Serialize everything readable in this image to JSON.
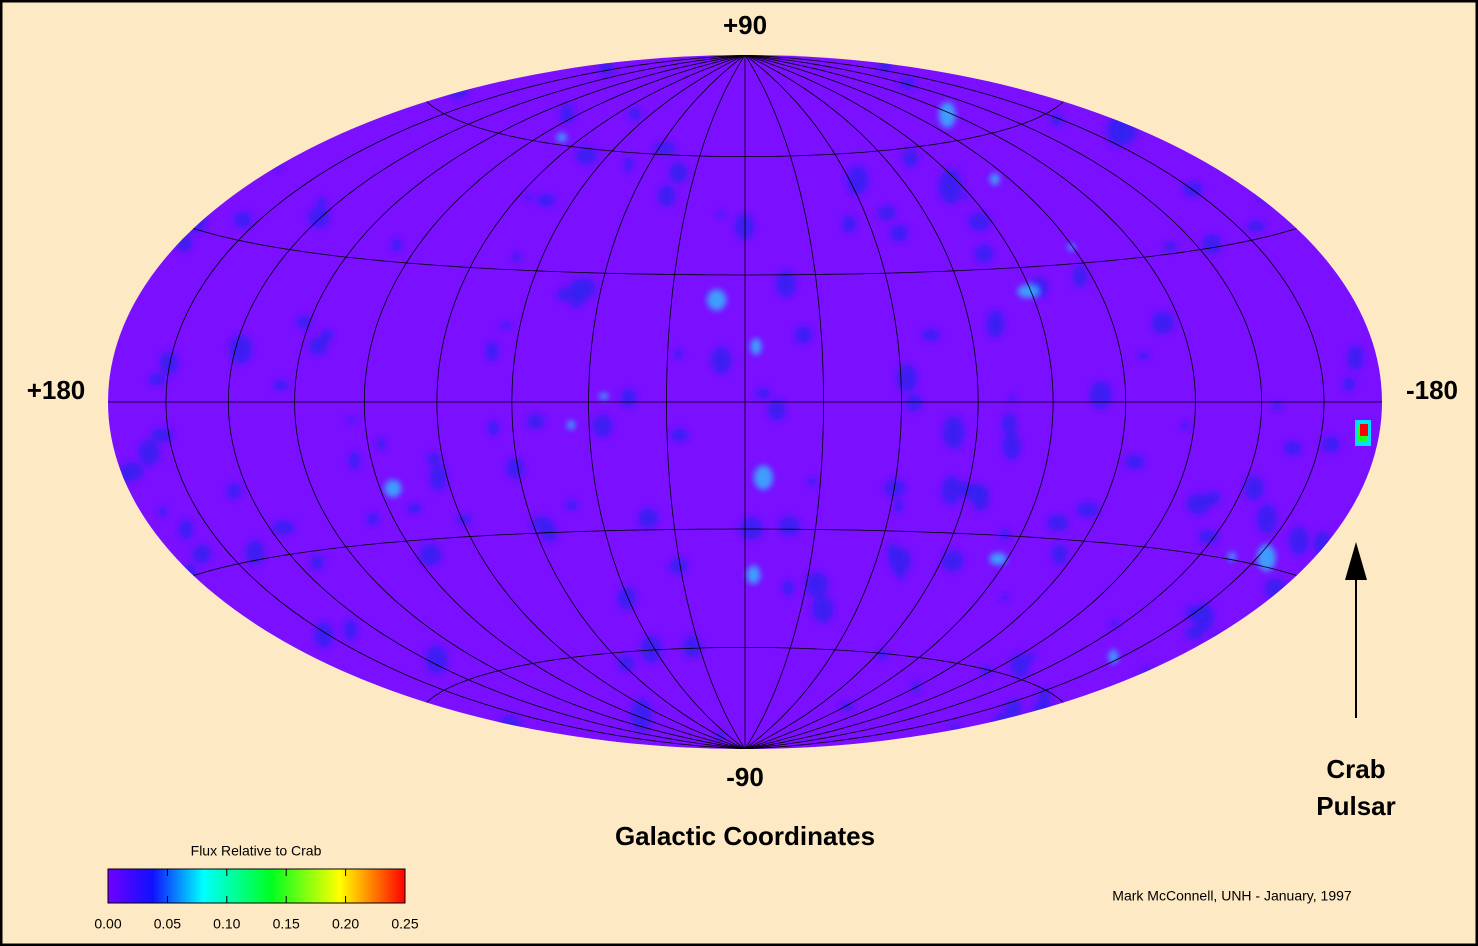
{
  "map": {
    "top_label": "+90",
    "bottom_label": "-90",
    "left_label": "+180",
    "right_label": "-180",
    "annotation": {
      "line1": "Crab",
      "line2": "Pulsar"
    },
    "subtitle": "Galactic Coordinates",
    "credit": "Mark McConnell, UNH - January, 1997"
  },
  "colorbar": {
    "title": "Flux Relative to Crab",
    "ticks": [
      {
        "value": 0,
        "label": "0.00"
      },
      {
        "value": 0.05,
        "label": "0.05"
      },
      {
        "value": 0.1,
        "label": "0.10"
      },
      {
        "value": 0.15,
        "label": "0.15"
      },
      {
        "value": 0.2,
        "label": "0.20"
      },
      {
        "value": 0.25,
        "label": "0.25"
      }
    ]
  }
}
